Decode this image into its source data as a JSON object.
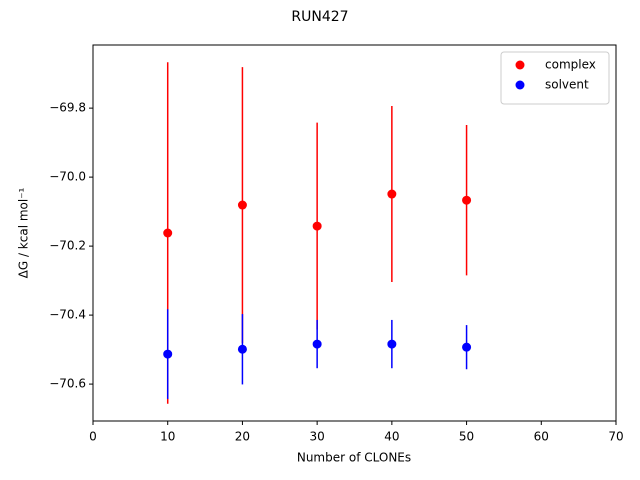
{
  "chart_data": {
    "type": "scatter",
    "title": "RUN427",
    "x_label": "Number of CLONEs",
    "y_label": "ΔG / kcal mol⁻¹",
    "x": [
      10,
      20,
      30,
      40,
      50
    ],
    "series": [
      {
        "name": "complex",
        "color": "#ff0000",
        "values": [
          -70.162,
          -70.081,
          -70.142,
          -70.049,
          -70.067
        ],
        "errors": [
          0.495,
          0.4,
          0.3,
          0.255,
          0.218
        ]
      },
      {
        "name": "solvent",
        "color": "#0000ff",
        "values": [
          -70.513,
          -70.499,
          -70.484,
          -70.484,
          -70.493
        ],
        "errors": [
          0.13,
          0.102,
          0.07,
          0.07,
          0.064
        ]
      }
    ],
    "xlim": [
      0,
      70
    ],
    "xticks": [
      0,
      10,
      20,
      30,
      40,
      50,
      60,
      70
    ],
    "ylim": [
      -70.707,
      -69.617
    ],
    "yticks": [
      {
        "value": -70.6,
        "label": "−70.6"
      },
      {
        "value": -70.4,
        "label": "−70.4"
      },
      {
        "value": -70.2,
        "label": "−70.2"
      },
      {
        "value": -70.0,
        "label": "−70.0"
      },
      {
        "value": -69.8,
        "label": "−69.8"
      }
    ],
    "grid": false,
    "legend": "upper right"
  }
}
